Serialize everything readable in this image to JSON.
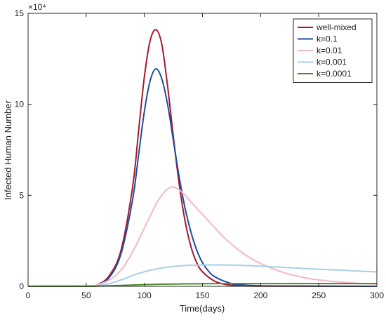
{
  "chart_data": {
    "type": "line",
    "xlabel": "Time(days)",
    "ylabel": "Infected Human Number",
    "xlim": [
      0,
      300
    ],
    "ylim": [
      0,
      15
    ],
    "y_multiplier": "×10⁴",
    "x_ticks": [
      0,
      50,
      100,
      150,
      200,
      250,
      300
    ],
    "y_ticks": [
      0,
      5,
      10,
      15
    ],
    "x_tick_labels": [
      "0",
      "50",
      "100",
      "150",
      "200",
      "250",
      "300"
    ],
    "y_tick_labels": [
      "0",
      "5",
      "10",
      "15"
    ],
    "grid": false,
    "legend_position": "top-right",
    "series": [
      {
        "name": "well-mixed",
        "color": "#a6192e",
        "points": [
          [
            0,
            0
          ],
          [
            50,
            0.02
          ],
          [
            60,
            0.1
          ],
          [
            70,
            0.6
          ],
          [
            80,
            2.0
          ],
          [
            90,
            5.5
          ],
          [
            95,
            8.5
          ],
          [
            100,
            11.5
          ],
          [
            105,
            13.5
          ],
          [
            110,
            14.1
          ],
          [
            115,
            13.3
          ],
          [
            120,
            11.0
          ],
          [
            125,
            8.2
          ],
          [
            130,
            5.6
          ],
          [
            135,
            3.6
          ],
          [
            140,
            2.2
          ],
          [
            145,
            1.3
          ],
          [
            150,
            0.8
          ],
          [
            160,
            0.3
          ],
          [
            170,
            0.1
          ],
          [
            180,
            0.04
          ],
          [
            200,
            0.01
          ],
          [
            300,
            0
          ]
        ]
      },
      {
        "name": "k=0.1",
        "color": "#1f4e9c",
        "points": [
          [
            0,
            0
          ],
          [
            50,
            0.02
          ],
          [
            60,
            0.1
          ],
          [
            70,
            0.5
          ],
          [
            80,
            1.8
          ],
          [
            90,
            4.8
          ],
          [
            95,
            7.2
          ],
          [
            100,
            9.6
          ],
          [
            105,
            11.3
          ],
          [
            110,
            11.95
          ],
          [
            115,
            11.4
          ],
          [
            120,
            10.0
          ],
          [
            125,
            8.0
          ],
          [
            130,
            6.0
          ],
          [
            135,
            4.3
          ],
          [
            140,
            3.0
          ],
          [
            145,
            2.0
          ],
          [
            150,
            1.3
          ],
          [
            155,
            0.85
          ],
          [
            160,
            0.55
          ],
          [
            170,
            0.25
          ],
          [
            180,
            0.1
          ],
          [
            200,
            0.03
          ],
          [
            250,
            0.01
          ],
          [
            300,
            0
          ]
        ]
      },
      {
        "name": "k=0.01",
        "color": "#f4b6c8",
        "points": [
          [
            0,
            0
          ],
          [
            50,
            0.02
          ],
          [
            60,
            0.1
          ],
          [
            70,
            0.35
          ],
          [
            80,
            0.9
          ],
          [
            90,
            1.9
          ],
          [
            100,
            3.2
          ],
          [
            110,
            4.5
          ],
          [
            115,
            5.0
          ],
          [
            120,
            5.35
          ],
          [
            125,
            5.45
          ],
          [
            130,
            5.3
          ],
          [
            135,
            5.0
          ],
          [
            140,
            4.65
          ],
          [
            150,
            3.95
          ],
          [
            160,
            3.25
          ],
          [
            170,
            2.6
          ],
          [
            180,
            2.05
          ],
          [
            190,
            1.6
          ],
          [
            200,
            1.25
          ],
          [
            220,
            0.75
          ],
          [
            240,
            0.45
          ],
          [
            260,
            0.28
          ],
          [
            280,
            0.18
          ],
          [
            300,
            0.12
          ]
        ]
      },
      {
        "name": "k=0.001",
        "color": "#a9cfe6",
        "points": [
          [
            0,
            0
          ],
          [
            50,
            0.01
          ],
          [
            60,
            0.05
          ],
          [
            70,
            0.15
          ],
          [
            80,
            0.35
          ],
          [
            90,
            0.6
          ],
          [
            100,
            0.8
          ],
          [
            110,
            0.95
          ],
          [
            120,
            1.05
          ],
          [
            130,
            1.12
          ],
          [
            140,
            1.16
          ],
          [
            150,
            1.17
          ],
          [
            160,
            1.18
          ],
          [
            170,
            1.17
          ],
          [
            180,
            1.16
          ],
          [
            200,
            1.11
          ],
          [
            220,
            1.04
          ],
          [
            240,
            0.97
          ],
          [
            260,
            0.91
          ],
          [
            280,
            0.85
          ],
          [
            300,
            0.79
          ]
        ]
      },
      {
        "name": "k=0.0001",
        "color": "#4f8a2c",
        "points": [
          [
            0,
            0
          ],
          [
            50,
            0.0
          ],
          [
            60,
            0.01
          ],
          [
            70,
            0.03
          ],
          [
            80,
            0.05
          ],
          [
            90,
            0.07
          ],
          [
            100,
            0.09
          ],
          [
            110,
            0.11
          ],
          [
            120,
            0.12
          ],
          [
            130,
            0.13
          ],
          [
            140,
            0.14
          ],
          [
            150,
            0.14
          ],
          [
            160,
            0.15
          ],
          [
            180,
            0.15
          ],
          [
            200,
            0.15
          ],
          [
            220,
            0.15
          ],
          [
            240,
            0.15
          ],
          [
            260,
            0.15
          ],
          [
            280,
            0.15
          ],
          [
            300,
            0.15
          ]
        ]
      }
    ]
  }
}
